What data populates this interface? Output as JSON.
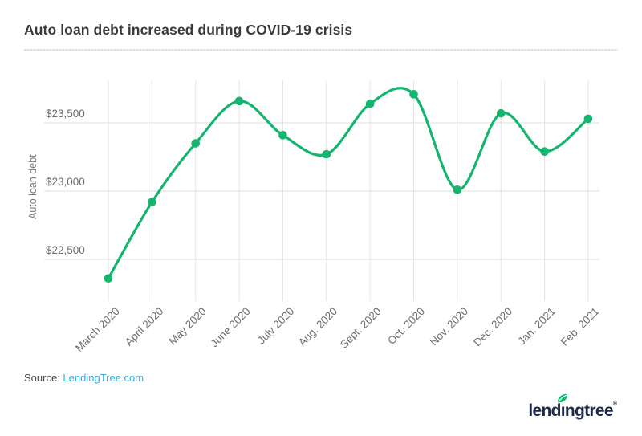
{
  "title": "Auto loan debt increased during COVID-19 crisis",
  "source": {
    "prefix": "Source: ",
    "link_text": "LendingTree.com"
  },
  "logo": {
    "text": "lendingtree",
    "pre": "lend",
    "dotless_i": "ı",
    "post": "ngtree",
    "reg": "®",
    "leaf_icon": "leaf-icon"
  },
  "colors": {
    "accent_green": "#15b46f",
    "link_blue": "#35aee3",
    "logo_navy": "#1b2a47",
    "grid_vertical": "#e4e4e4",
    "grid_horizontal": "#dddddd",
    "tick_text": "#6d6d6d",
    "title_text": "#3a3a3a"
  },
  "chart_data": {
    "type": "line",
    "title": "Auto loan debt increased during COVID-19 crisis",
    "xlabel": "",
    "ylabel": "Auto loan debt",
    "categories": [
      "March 2020",
      "April 2020",
      "May 2020",
      "June 2020",
      "July 2020",
      "Aug. 2020",
      "Sept. 2020",
      "Oct. 2020",
      "Nov. 2020",
      "Dec. 2020",
      "Jan. 2021",
      "Feb. 2021"
    ],
    "values": [
      22360,
      22920,
      23350,
      23660,
      23410,
      23270,
      23640,
      23710,
      23010,
      23570,
      23290,
      23530
    ],
    "y_ticks": [
      22500,
      23000,
      23500
    ],
    "y_tick_labels": [
      "$22,500",
      "$23,000",
      "$23,500"
    ],
    "ylim": [
      22194,
      23812
    ],
    "grid": true,
    "legend": "none",
    "smooth": true,
    "markers": true,
    "line_color": "#15b46f"
  }
}
